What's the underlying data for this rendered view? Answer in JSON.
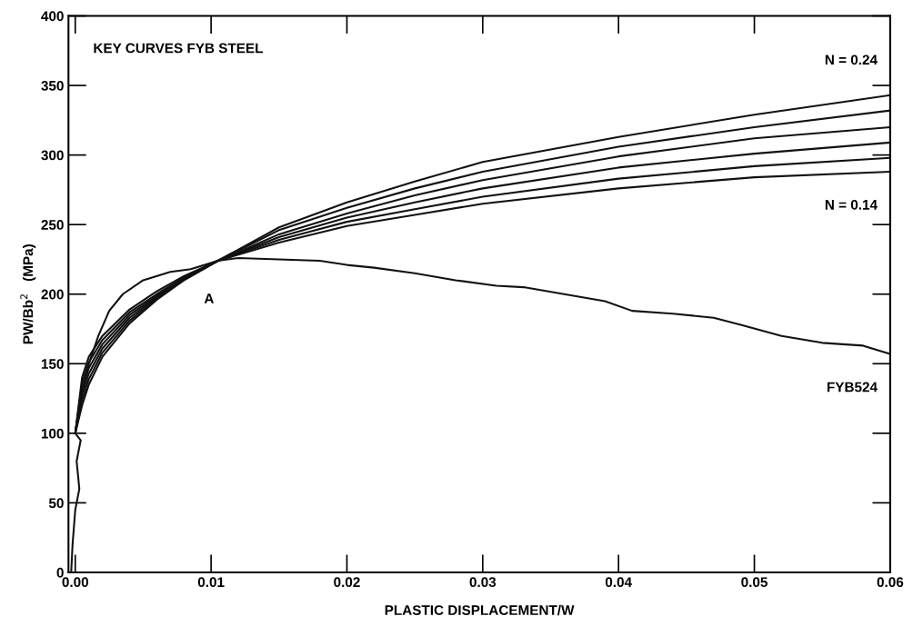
{
  "chart_data": {
    "type": "line",
    "xlabel": "PLASTIC DISPLACEMENT/W",
    "ylabel": "PW/Bb$^{2}$   (MPa)",
    "xlim": [
      -0.0005,
      0.06
    ],
    "ylim": [
      0,
      400
    ],
    "xticks": [
      {
        "value": 0,
        "label": "0.00"
      },
      {
        "value": 0.01,
        "label": "0.01"
      },
      {
        "value": 0.02,
        "label": "0.02"
      },
      {
        "value": 0.03,
        "label": "0.03"
      },
      {
        "value": 0.04,
        "label": "0.04"
      },
      {
        "value": 0.05,
        "label": "0.05"
      },
      {
        "value": 0.06,
        "label": "0.06"
      }
    ],
    "yticks": [
      0,
      50,
      100,
      150,
      200,
      250,
      300,
      350,
      400
    ],
    "grid": false,
    "legend": false,
    "marker": "none",
    "line_style": "solid",
    "x": [
      0,
      0.0005,
      0.001,
      0.002,
      0.004,
      0.006,
      0.008,
      0.0105,
      0.015,
      0.02,
      0.025,
      0.03,
      0.04,
      0.05,
      0.06
    ],
    "series": [
      {
        "name": "N = 0.14",
        "color": "#111111",
        "values": [
          100,
          140,
          155,
          170,
          189,
          202,
          213,
          224,
          237,
          249,
          257,
          265,
          276,
          284,
          288
        ]
      },
      {
        "color": "#111111",
        "values": [
          100,
          136,
          151,
          167,
          187,
          200,
          212,
          224,
          239,
          252,
          261,
          270,
          283,
          292,
          298
        ]
      },
      {
        "color": "#111111",
        "values": [
          100,
          132,
          147,
          164,
          185,
          199,
          211,
          224,
          241,
          255,
          266,
          276,
          291,
          301,
          309
        ]
      },
      {
        "color": "#111111",
        "values": [
          100,
          128,
          143,
          161,
          183,
          198,
          211,
          224,
          243,
          258,
          271,
          282,
          299,
          312,
          320
        ]
      },
      {
        "color": "#111111",
        "values": [
          100,
          124,
          139,
          158,
          181,
          197,
          210,
          224,
          246,
          262,
          276,
          288,
          306,
          320,
          332
        ]
      },
      {
        "name": "N = 0.24",
        "color": "#111111",
        "values": [
          100,
          120,
          135,
          155,
          179,
          196,
          210,
          224,
          248,
          266,
          281,
          295,
          313,
          329,
          343
        ]
      },
      {
        "name": "FYB524",
        "color": "#111111",
        "x": [
          -0.0003,
          -0.0002,
          0.0,
          0.0003,
          0.0001,
          0.0004,
          0.0,
          0.0005,
          0.001,
          0.0017,
          0.0025,
          0.0035,
          0.005,
          0.007,
          0.0085,
          0.0105,
          0.012,
          0.015,
          0.018,
          0.02,
          0.022,
          0.025,
          0.028,
          0.031,
          0.033,
          0.036,
          0.039,
          0.041,
          0.044,
          0.047,
          0.049,
          0.052,
          0.055,
          0.058,
          0.06
        ],
        "values": [
          0,
          20,
          45,
          60,
          80,
          95,
          100,
          130,
          150,
          170,
          188,
          200,
          210,
          216,
          218,
          224,
          226,
          225,
          224,
          221,
          219,
          215,
          210,
          206,
          205,
          200,
          195,
          188,
          186,
          183,
          178,
          170,
          165,
          163,
          157
        ]
      }
    ],
    "annotations": [
      "KEY CURVES FYB STEEL",
      "A"
    ]
  }
}
